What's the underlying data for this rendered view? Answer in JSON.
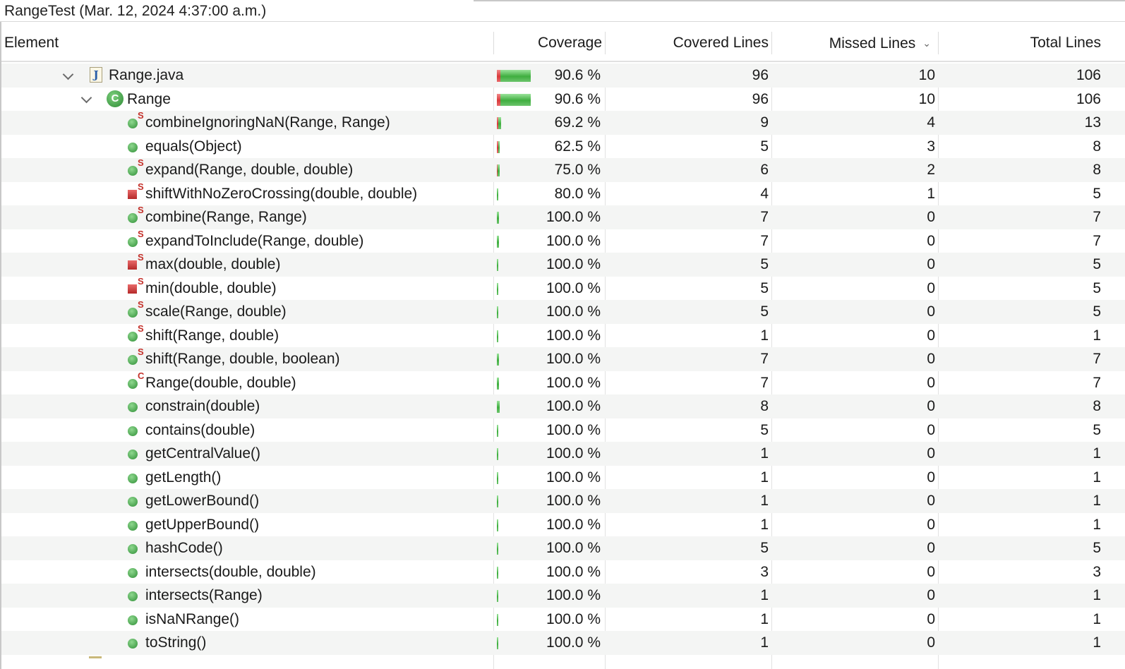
{
  "session": {
    "title": "RangeTest (Mar. 12, 2024 4:37:00 a.m.)"
  },
  "columns": {
    "element": "Element",
    "coverage": "Coverage",
    "covered": "Covered Lines",
    "missed": "Missed Lines",
    "total": "Total Lines"
  },
  "colors": {
    "covered_bar": "#3fae3f",
    "missed_bar": "#d83a3a",
    "row_alt": "#f4f5f4"
  },
  "rows": [
    {
      "label": "Range.java",
      "kind": "file",
      "level": 0,
      "expanded": true,
      "coverage": "90.6 %",
      "covered": 96,
      "missed": 10,
      "total": 106,
      "badge": ""
    },
    {
      "label": "Range",
      "kind": "class",
      "level": 1,
      "expanded": true,
      "coverage": "90.6 %",
      "covered": 96,
      "missed": 10,
      "total": 106,
      "badge": ""
    },
    {
      "label": "combineIgnoringNaN(Range, Range)",
      "kind": "method-public",
      "level": 2,
      "coverage": "69.2 %",
      "covered": 9,
      "missed": 4,
      "total": 13,
      "badge": "S"
    },
    {
      "label": "equals(Object)",
      "kind": "method-public",
      "level": 2,
      "coverage": "62.5 %",
      "covered": 5,
      "missed": 3,
      "total": 8,
      "badge": ""
    },
    {
      "label": "expand(Range, double, double)",
      "kind": "method-public",
      "level": 2,
      "coverage": "75.0 %",
      "covered": 6,
      "missed": 2,
      "total": 8,
      "badge": "S"
    },
    {
      "label": "shiftWithNoZeroCrossing(double, double)",
      "kind": "method-private",
      "level": 2,
      "coverage": "80.0 %",
      "covered": 4,
      "missed": 1,
      "total": 5,
      "badge": "S"
    },
    {
      "label": "combine(Range, Range)",
      "kind": "method-public",
      "level": 2,
      "coverage": "100.0 %",
      "covered": 7,
      "missed": 0,
      "total": 7,
      "badge": "S"
    },
    {
      "label": "expandToInclude(Range, double)",
      "kind": "method-public",
      "level": 2,
      "coverage": "100.0 %",
      "covered": 7,
      "missed": 0,
      "total": 7,
      "badge": "S"
    },
    {
      "label": "max(double, double)",
      "kind": "method-private",
      "level": 2,
      "coverage": "100.0 %",
      "covered": 5,
      "missed": 0,
      "total": 5,
      "badge": "S"
    },
    {
      "label": "min(double, double)",
      "kind": "method-private",
      "level": 2,
      "coverage": "100.0 %",
      "covered": 5,
      "missed": 0,
      "total": 5,
      "badge": "S"
    },
    {
      "label": "scale(Range, double)",
      "kind": "method-public",
      "level": 2,
      "coverage": "100.0 %",
      "covered": 5,
      "missed": 0,
      "total": 5,
      "badge": "S"
    },
    {
      "label": "shift(Range, double)",
      "kind": "method-public",
      "level": 2,
      "coverage": "100.0 %",
      "covered": 1,
      "missed": 0,
      "total": 1,
      "badge": "S"
    },
    {
      "label": "shift(Range, double, boolean)",
      "kind": "method-public",
      "level": 2,
      "coverage": "100.0 %",
      "covered": 7,
      "missed": 0,
      "total": 7,
      "badge": "S"
    },
    {
      "label": "Range(double, double)",
      "kind": "method-public",
      "level": 2,
      "coverage": "100.0 %",
      "covered": 7,
      "missed": 0,
      "total": 7,
      "badge": "C"
    },
    {
      "label": "constrain(double)",
      "kind": "method-public",
      "level": 2,
      "coverage": "100.0 %",
      "covered": 8,
      "missed": 0,
      "total": 8,
      "badge": ""
    },
    {
      "label": "contains(double)",
      "kind": "method-public",
      "level": 2,
      "coverage": "100.0 %",
      "covered": 5,
      "missed": 0,
      "total": 5,
      "badge": ""
    },
    {
      "label": "getCentralValue()",
      "kind": "method-public",
      "level": 2,
      "coverage": "100.0 %",
      "covered": 1,
      "missed": 0,
      "total": 1,
      "badge": ""
    },
    {
      "label": "getLength()",
      "kind": "method-public",
      "level": 2,
      "coverage": "100.0 %",
      "covered": 1,
      "missed": 0,
      "total": 1,
      "badge": ""
    },
    {
      "label": "getLowerBound()",
      "kind": "method-public",
      "level": 2,
      "coverage": "100.0 %",
      "covered": 1,
      "missed": 0,
      "total": 1,
      "badge": ""
    },
    {
      "label": "getUpperBound()",
      "kind": "method-public",
      "level": 2,
      "coverage": "100.0 %",
      "covered": 1,
      "missed": 0,
      "total": 1,
      "badge": ""
    },
    {
      "label": "hashCode()",
      "kind": "method-public",
      "level": 2,
      "coverage": "100.0 %",
      "covered": 5,
      "missed": 0,
      "total": 5,
      "badge": ""
    },
    {
      "label": "intersects(double, double)",
      "kind": "method-public",
      "level": 2,
      "coverage": "100.0 %",
      "covered": 3,
      "missed": 0,
      "total": 3,
      "badge": ""
    },
    {
      "label": "intersects(Range)",
      "kind": "method-public",
      "level": 2,
      "coverage": "100.0 %",
      "covered": 1,
      "missed": 0,
      "total": 1,
      "badge": ""
    },
    {
      "label": "isNaNRange()",
      "kind": "method-public",
      "level": 2,
      "coverage": "100.0 %",
      "covered": 1,
      "missed": 0,
      "total": 1,
      "badge": ""
    },
    {
      "label": "toString()",
      "kind": "method-public",
      "level": 2,
      "coverage": "100.0 %",
      "covered": 1,
      "missed": 0,
      "total": 1,
      "badge": ""
    }
  ]
}
